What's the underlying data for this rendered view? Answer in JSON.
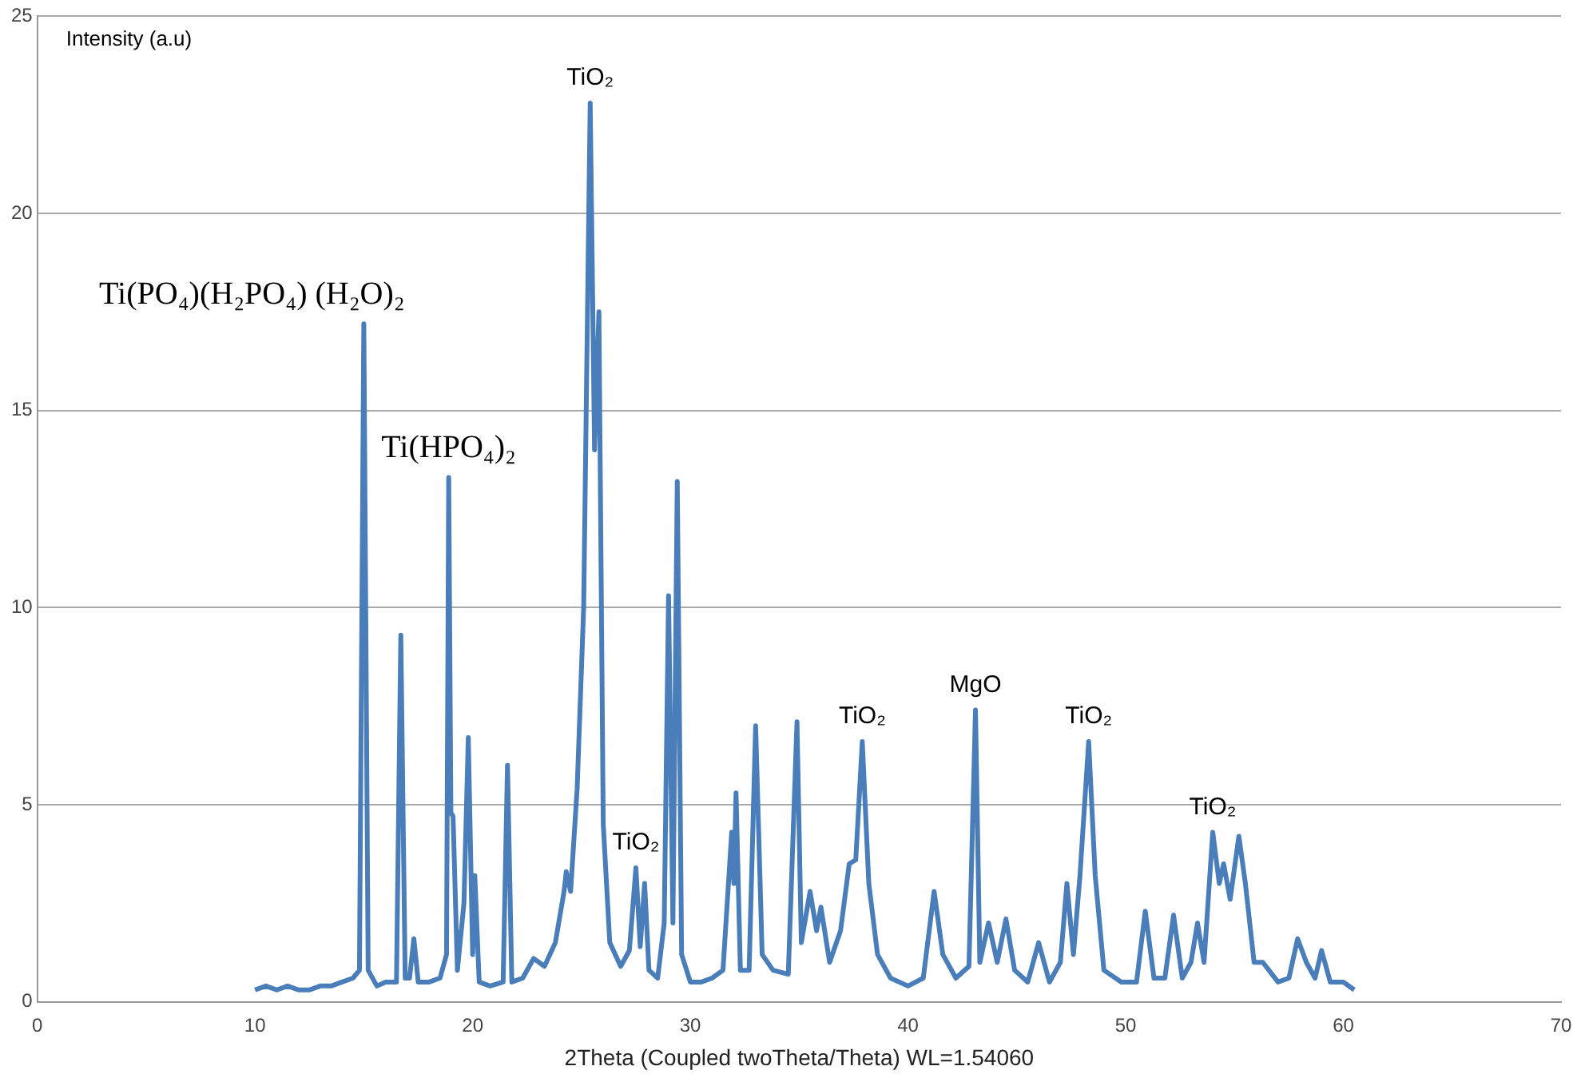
{
  "chart_data": {
    "type": "line",
    "xlabel": "2Theta (Coupled twoTheta/Theta) WL=1.54060",
    "ylabel": "Intensity (a.u)",
    "xlim": [
      0,
      70
    ],
    "xticks": [
      0,
      10,
      20,
      30,
      40,
      50,
      60,
      70
    ],
    "ylim": [
      0,
      25
    ],
    "yticks": [
      0,
      5,
      10,
      15,
      20,
      25
    ],
    "grid": "y",
    "legend": false,
    "marker": "none",
    "line_style": "solid",
    "series": [
      {
        "color": "#4a7ebb",
        "x": [
          10,
          10.5,
          11,
          11.5,
          12,
          12.5,
          13,
          13.5,
          14,
          14.5,
          14.8,
          15.0,
          15.2,
          15.6,
          16.0,
          16.5,
          16.7,
          16.9,
          17.1,
          17.3,
          17.5,
          18.0,
          18.5,
          18.8,
          18.9,
          19.0,
          19.1,
          19.3,
          19.6,
          19.8,
          20.0,
          20.1,
          20.3,
          20.8,
          21.4,
          21.6,
          21.8,
          22.3,
          22.8,
          23.3,
          23.8,
          24.2,
          24.3,
          24.5,
          24.8,
          25.1,
          25.4,
          25.6,
          25.8,
          26.0,
          26.3,
          26.8,
          27.2,
          27.5,
          27.7,
          27.9,
          28.1,
          28.5,
          28.8,
          29.0,
          29.2,
          29.4,
          29.6,
          30.0,
          30.5,
          31.0,
          31.5,
          31.9,
          32.0,
          32.1,
          32.3,
          32.7,
          33.0,
          33.3,
          33.8,
          34.5,
          34.9,
          35.1,
          35.5,
          35.8,
          36.0,
          36.4,
          36.9,
          37.3,
          37.6,
          37.9,
          38.2,
          38.6,
          39.2,
          40.0,
          40.7,
          41.2,
          41.6,
          42.2,
          42.8,
          43.1,
          43.3,
          43.7,
          44.1,
          44.5,
          44.9,
          45.5,
          46.0,
          46.5,
          47.0,
          47.3,
          47.6,
          47.9,
          48.3,
          48.6,
          49.0,
          49.8,
          50.5,
          50.9,
          51.3,
          51.8,
          52.2,
          52.6,
          53.0,
          53.3,
          53.6,
          54.0,
          54.3,
          54.5,
          54.8,
          55.2,
          55.5,
          55.9,
          56.3,
          57.0,
          57.5,
          57.9,
          58.3,
          58.7,
          59.0,
          59.4,
          60.0,
          60.5
        ],
        "values": [
          0.3,
          0.4,
          0.3,
          0.4,
          0.3,
          0.3,
          0.4,
          0.4,
          0.5,
          0.6,
          0.8,
          17.2,
          0.8,
          0.4,
          0.5,
          0.5,
          9.3,
          0.6,
          0.6,
          1.6,
          0.5,
          0.5,
          0.6,
          1.2,
          13.3,
          4.8,
          4.7,
          0.8,
          2.5,
          6.7,
          1.2,
          3.2,
          0.5,
          0.4,
          0.5,
          6.0,
          0.5,
          0.6,
          1.1,
          0.9,
          1.5,
          2.8,
          3.3,
          2.8,
          5.4,
          10.0,
          22.8,
          14.0,
          17.5,
          4.5,
          1.5,
          0.9,
          1.3,
          3.4,
          1.4,
          3.0,
          0.8,
          0.6,
          2.0,
          10.3,
          2.0,
          13.2,
          1.2,
          0.5,
          0.5,
          0.6,
          0.8,
          4.3,
          3.0,
          5.3,
          0.8,
          0.8,
          7.0,
          1.2,
          0.8,
          0.7,
          7.1,
          1.5,
          2.8,
          1.8,
          2.4,
          1.0,
          1.8,
          3.5,
          3.6,
          6.6,
          3.0,
          1.2,
          0.6,
          0.4,
          0.6,
          2.8,
          1.2,
          0.6,
          0.9,
          7.4,
          1.0,
          2.0,
          1.0,
          2.1,
          0.8,
          0.5,
          1.5,
          0.5,
          1.0,
          3.0,
          1.2,
          3.2,
          6.6,
          3.2,
          0.8,
          0.5,
          0.5,
          2.3,
          0.6,
          0.6,
          2.2,
          0.6,
          1.0,
          2.0,
          1.0,
          4.3,
          3.0,
          3.5,
          2.6,
          4.2,
          3.0,
          1.0,
          1.0,
          0.5,
          0.6,
          1.6,
          1.0,
          0.6,
          1.3,
          0.5,
          0.5,
          0.3
        ]
      }
    ],
    "annotations": [
      {
        "text": "Ti(PO₄)(H₂PO₄) (H₂O)₂",
        "x": 15.0,
        "y": 17.2
      },
      {
        "text": "Ti(HPO₄)₂",
        "x": 18.9,
        "y": 13.3
      },
      {
        "text": "TiO₂",
        "x": 25.4,
        "y": 22.8
      },
      {
        "text": "TiO₂",
        "x": 27.5,
        "y": 3.4
      },
      {
        "text": "TiO₂",
        "x": 37.9,
        "y": 6.6
      },
      {
        "text": "MgO",
        "x": 43.1,
        "y": 7.4
      },
      {
        "text": "TiO₂",
        "x": 48.3,
        "y": 6.6
      },
      {
        "text": "TiO₂",
        "x": 54.0,
        "y": 4.3
      }
    ]
  }
}
